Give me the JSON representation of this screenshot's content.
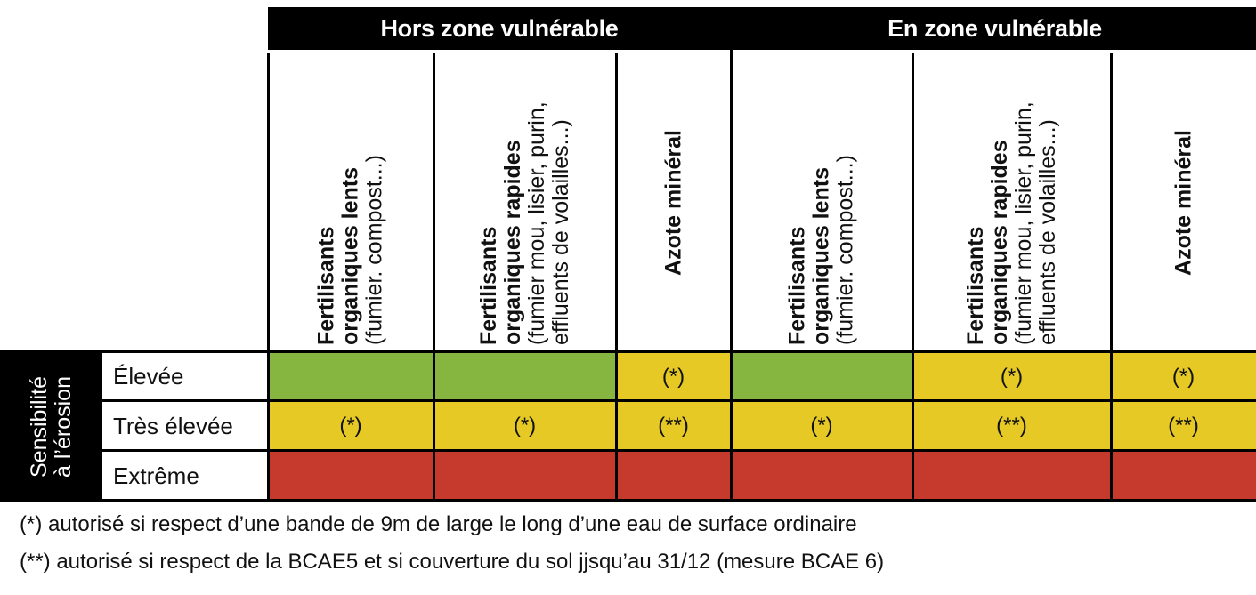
{
  "groups": {
    "hors": "Hors zone vulnérable",
    "en": "En zone vulnérable"
  },
  "columns": [
    {
      "bold1": "Fertilisants",
      "bold2": "organiques lents",
      "normal1": "(fumier. compost...)",
      "normal2": ""
    },
    {
      "bold1": "Fertilisants",
      "bold2": "organiques rapides",
      "normal1": "(fumier mou, lisier, purin,",
      "normal2": "effluents de volailles...)"
    },
    {
      "bold1": "Azote minéral",
      "bold2": "",
      "normal1": "",
      "normal2": ""
    },
    {
      "bold1": "Fertilisants",
      "bold2": "organiques lents",
      "normal1": "(fumier. compost...)",
      "normal2": ""
    },
    {
      "bold1": "Fertilisants",
      "bold2": "organiques rapides",
      "normal1": "(fumier mou, lisier, purin,",
      "normal2": "effluents de volailles...)"
    },
    {
      "bold1": "Azote minéral",
      "bold2": "",
      "normal1": "",
      "normal2": ""
    }
  ],
  "side_label": {
    "line1": "Sensibilité",
    "line2": "à l’érosion"
  },
  "rows": [
    {
      "label": "Élevée",
      "cells": [
        "",
        "",
        "(*)",
        "",
        "(*)",
        "(*)"
      ],
      "colors": [
        "green",
        "green",
        "yellow",
        "green",
        "yellow",
        "yellow"
      ]
    },
    {
      "label": "Très élevée",
      "cells": [
        "(*)",
        "(*)",
        "(**)",
        "(*)",
        "(**)",
        "(**)"
      ],
      "colors": [
        "yellow",
        "yellow",
        "yellow",
        "yellow",
        "yellow",
        "yellow"
      ]
    },
    {
      "label": "Extrême",
      "cells": [
        "",
        "",
        "",
        "",
        "",
        ""
      ],
      "colors": [
        "red",
        "red",
        "red",
        "red",
        "red",
        "red"
      ]
    }
  ],
  "colors": {
    "green": "#86b540",
    "yellow": "#e6c924",
    "red": "#c53a2c"
  },
  "footnotes": {
    "note1": "(*) autorisé si respect d’une bande de 9m de large le long d’une eau de surface ordinaire",
    "note2": "(**) autorisé si respect de la BCAE5 et si couverture du sol jjsqu’au 31/12 (mesure BCAE 6)"
  }
}
